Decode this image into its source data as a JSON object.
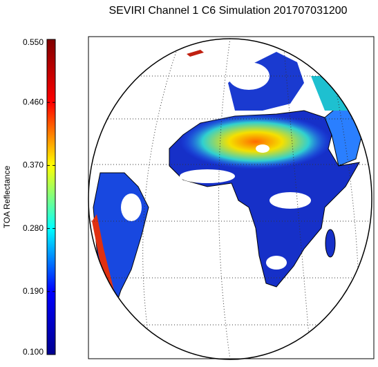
{
  "title": "SEVIRI Channel 1 C6 Simulation 201707031200",
  "colorbar": {
    "label": "TOA Reflectance",
    "lim": [
      0.1,
      0.55
    ],
    "ticks": [
      {
        "value": 0.1,
        "label": "0.100"
      },
      {
        "value": 0.19,
        "label": "0.190"
      },
      {
        "value": 0.28,
        "label": "0.280"
      },
      {
        "value": 0.37,
        "label": "0.370"
      },
      {
        "value": 0.46,
        "label": "0.460"
      },
      {
        "value": 0.55,
        "label": "0.550"
      }
    ],
    "colors": [
      "#00008f",
      "#0000ff",
      "#00ffff",
      "#ffff00",
      "#ff0000",
      "#800000"
    ]
  }
}
